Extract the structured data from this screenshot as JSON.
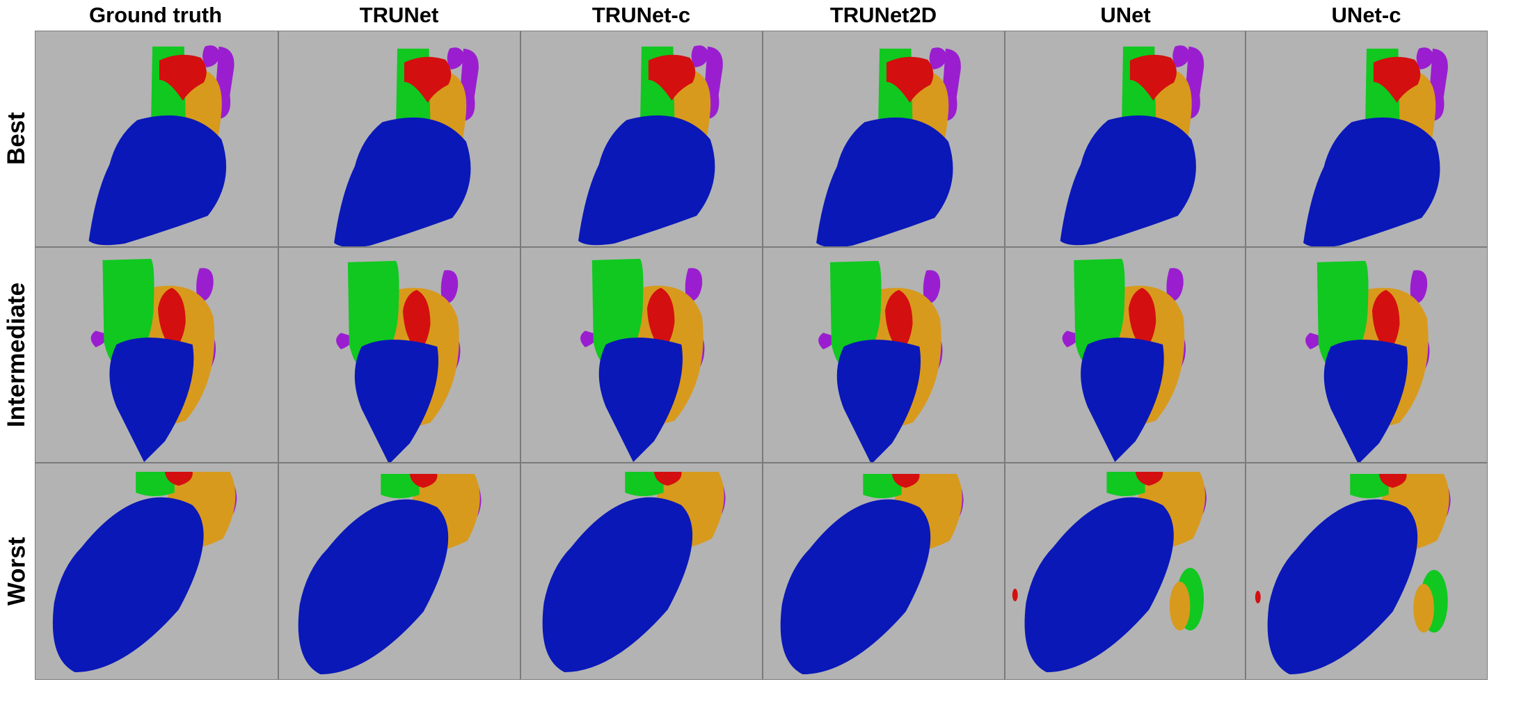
{
  "columns": [
    "Ground truth",
    "TRUNet",
    "TRUNet-c",
    "TRUNet2D",
    "UNet",
    "UNet-c"
  ],
  "rows": [
    "Best",
    "Intermediate",
    "Worst"
  ],
  "colors": {
    "background": "#b3b3b3",
    "blue_structure": "#0a18b8",
    "green_structure": "#10c820",
    "orange_structure": "#d89a1c",
    "red_structure": "#d40f0f",
    "purple_structure": "#9a1ed0"
  }
}
